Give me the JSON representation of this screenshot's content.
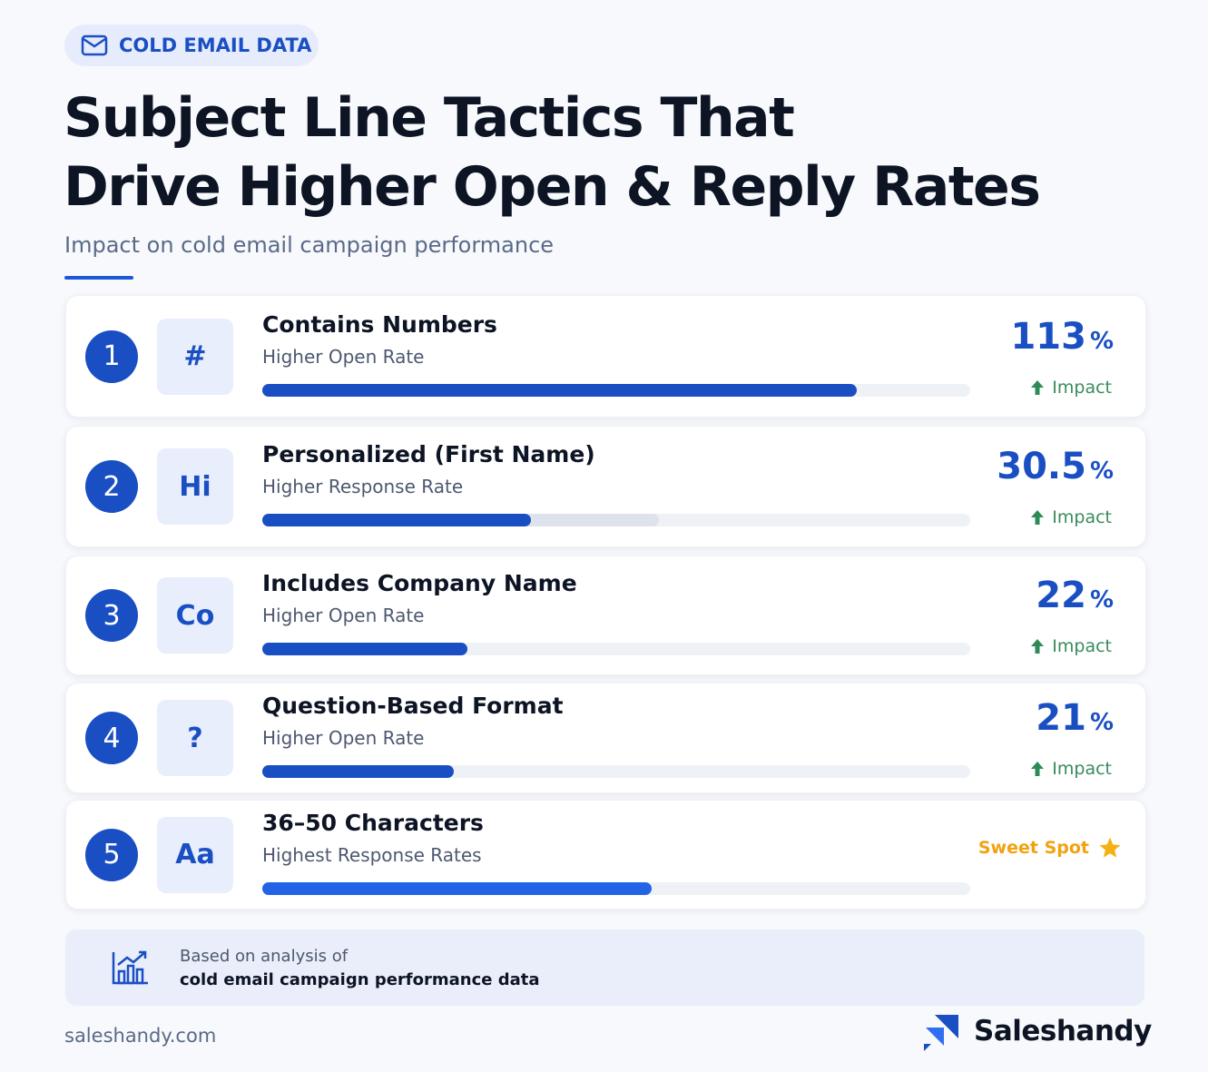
{
  "badge": "COLD EMAIL DATA",
  "title_lines": [
    "Subject Line Tactics That",
    "Drive Higher Open & Reply Rates"
  ],
  "subtitle": "Impact on cold email campaign performance",
  "bar_lim": [
    0,
    100
  ],
  "rows": [
    {
      "rank": 1,
      "icon": "#",
      "title": "Contains Numbers",
      "metric": "Higher Open Rate",
      "value": 113,
      "unit": "%",
      "label": "Impact",
      "bar": 84
    },
    {
      "rank": 2,
      "icon": "Hi",
      "title": "Personalized (First Name)",
      "metric": "Higher Response Rate",
      "value": 30.5,
      "unit": "%",
      "label": "Impact",
      "bar": 38,
      "bar_secondary": 56
    },
    {
      "rank": 3,
      "icon": "Co",
      "title": "Includes Company Name",
      "metric": "Higher Open Rate",
      "value": 22,
      "unit": "%",
      "label": "Impact",
      "bar": 29
    },
    {
      "rank": 4,
      "icon": "?",
      "title": "Question-Based Format",
      "metric": "Higher Open Rate",
      "value": 21,
      "unit": "%",
      "label": "Impact",
      "bar": 27
    },
    {
      "rank": 5,
      "icon": "Aa",
      "title": "36–50 Characters",
      "metric": "Highest Response Rates",
      "badge": "Sweet Spot",
      "bar": 55
    }
  ],
  "note": [
    "Based on analysis of",
    "cold email campaign performance data"
  ],
  "footer": {
    "site": "saleshandy.com",
    "brand": "Saleshandy"
  }
}
